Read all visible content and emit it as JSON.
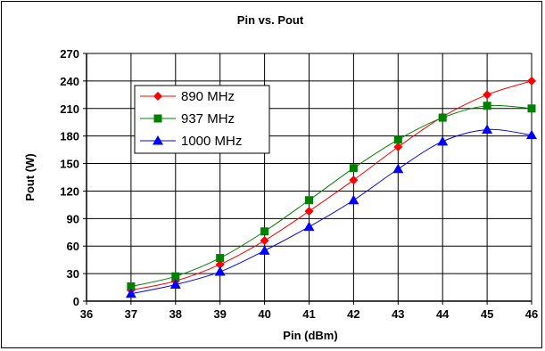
{
  "chart_data": {
    "type": "line",
    "title": "Pin vs. Pout",
    "xlabel": "Pin (dBm)",
    "ylabel": "Pout (W)",
    "xlim": [
      36,
      46
    ],
    "ylim": [
      0,
      270
    ],
    "xticks": [
      36,
      37,
      38,
      39,
      40,
      41,
      42,
      43,
      44,
      45,
      46
    ],
    "yticks": [
      0,
      30,
      60,
      90,
      120,
      150,
      180,
      210,
      240,
      270
    ],
    "grid": true,
    "legend_position": "top-left",
    "x": [
      37,
      38,
      39,
      40,
      41,
      42,
      43,
      44,
      45,
      46
    ],
    "series": [
      {
        "name": "890 MHz",
        "color": "#ff0000",
        "marker": "diamond",
        "values": [
          12,
          22,
          40,
          66,
          98,
          132,
          168,
          201,
          225,
          240
        ]
      },
      {
        "name": "937 MHz",
        "color": "#008000",
        "marker": "square",
        "values": [
          16,
          27,
          47,
          76,
          110,
          145,
          176,
          200,
          213,
          210
        ]
      },
      {
        "name": "1000 MHz",
        "color": "#0000ff",
        "marker": "triangle",
        "values": [
          8,
          18,
          32,
          55,
          81,
          110,
          144,
          174,
          187,
          181
        ]
      }
    ]
  }
}
